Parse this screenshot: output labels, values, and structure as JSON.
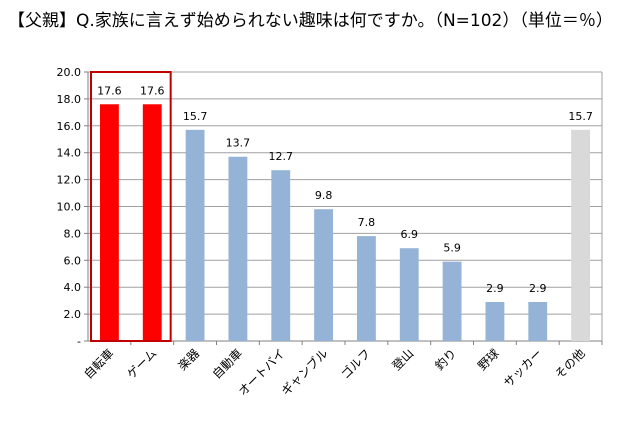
{
  "chart_data": {
    "type": "bar",
    "title": "【父親】Q.家族に言えず始められない趣味は何ですか。（N=102）（単位＝％）",
    "categories": [
      "自転車",
      "ゲーム",
      "楽器",
      "自動車",
      "オートバイ",
      "ギャンブル",
      "ゴルフ",
      "登山",
      "釣り",
      "野球",
      "サッカー",
      "その他"
    ],
    "values": [
      17.6,
      17.6,
      15.7,
      13.7,
      12.7,
      9.8,
      7.8,
      6.9,
      5.9,
      2.9,
      2.9,
      15.7
    ],
    "value_labels": [
      "17.6",
      "17.6",
      "15.7",
      "13.7",
      "12.7",
      "9.8",
      "7.8",
      "6.9",
      "5.9",
      "2.9",
      "2.9",
      "15.7"
    ],
    "bar_colors": [
      "#ff0000",
      "#ff0000",
      "#95b3d7",
      "#95b3d7",
      "#95b3d7",
      "#95b3d7",
      "#95b3d7",
      "#95b3d7",
      "#95b3d7",
      "#95b3d7",
      "#95b3d7",
      "#d9d9d9"
    ],
    "highlight_box_color": "#c00000",
    "highlighted_categories": [
      "自転車",
      "ゲーム"
    ],
    "ylim": [
      0,
      20
    ],
    "yticks": [
      "-",
      "2.0",
      "4.0",
      "6.0",
      "8.0",
      "10.0",
      "12.0",
      "14.0",
      "16.0",
      "18.0",
      "20.0"
    ],
    "grid": true,
    "legend": "none",
    "xlabel": "",
    "ylabel": ""
  }
}
